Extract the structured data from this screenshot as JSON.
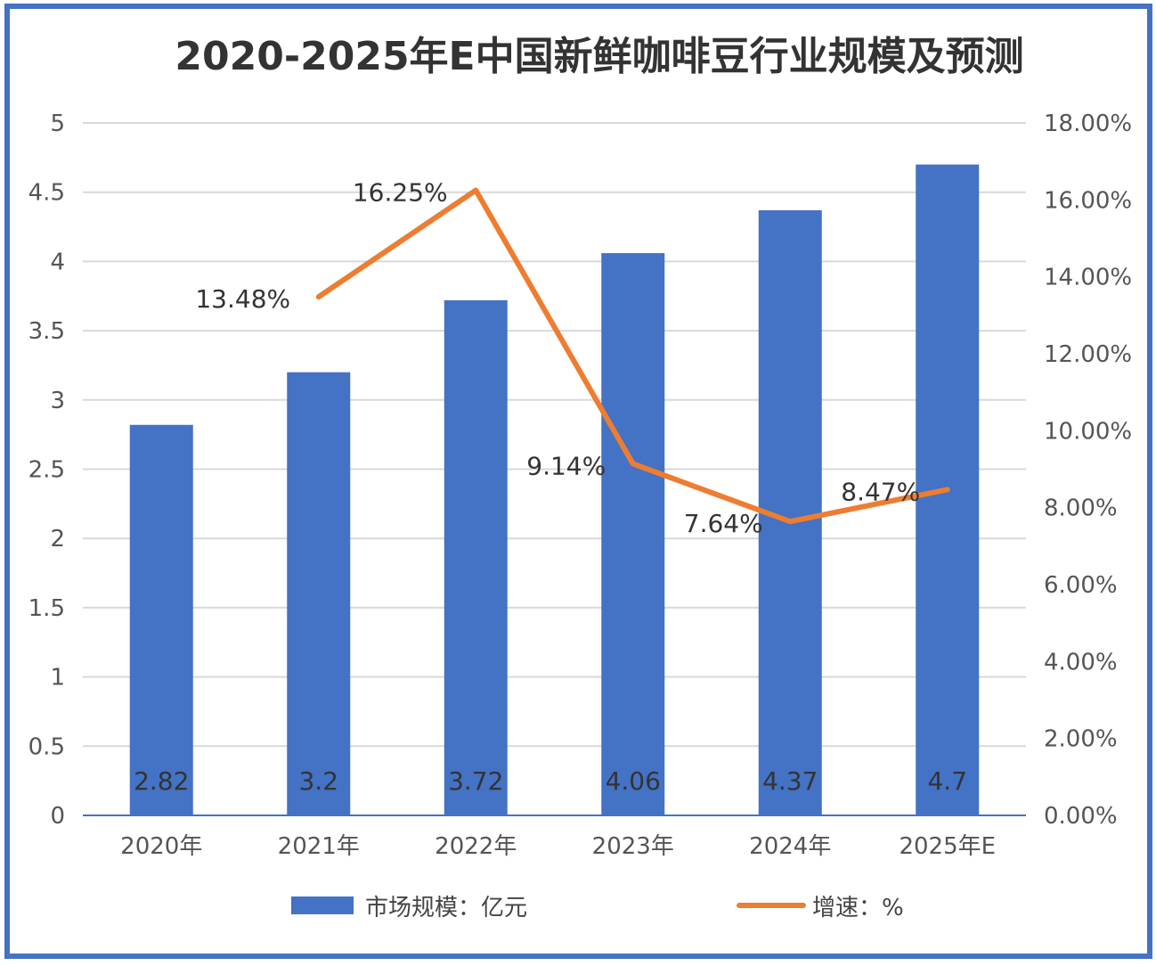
{
  "chart_data": {
    "type": "bar+line",
    "title": "2020-2025年E中国新鲜咖啡豆行业规模及预测",
    "categories": [
      "2020年",
      "2021年",
      "2022年",
      "2023年",
      "2024年",
      "2025年E"
    ],
    "series": [
      {
        "name": "市场规模：亿元",
        "type": "bar",
        "axis": "left",
        "values": [
          2.82,
          3.2,
          3.72,
          4.06,
          4.37,
          4.7
        ],
        "labels": [
          "2.82",
          "3.2",
          "3.72",
          "4.06",
          "4.37",
          "4.7"
        ],
        "color": "#4472C4"
      },
      {
        "name": "增速：%",
        "type": "line",
        "axis": "right",
        "values": [
          null,
          13.48,
          16.25,
          9.14,
          7.64,
          8.47
        ],
        "labels": [
          "",
          "13.48%",
          "16.25%",
          "9.14%",
          "7.64%",
          "8.47%"
        ],
        "color": "#ED7D31"
      }
    ],
    "y_left": {
      "range": [
        0,
        5
      ],
      "ticks": [
        "0",
        "0.5",
        "1",
        "1.5",
        "2",
        "2.5",
        "3",
        "3.5",
        "4",
        "4.5",
        "5"
      ]
    },
    "y_right": {
      "range": [
        0,
        18
      ],
      "ticks": [
        "0.00%",
        "2.00%",
        "4.00%",
        "6.00%",
        "8.00%",
        "10.00%",
        "12.00%",
        "14.00%",
        "16.00%",
        "18.00%"
      ]
    },
    "grid": true,
    "legend": "bottom",
    "frame_color": "#4472C4"
  }
}
